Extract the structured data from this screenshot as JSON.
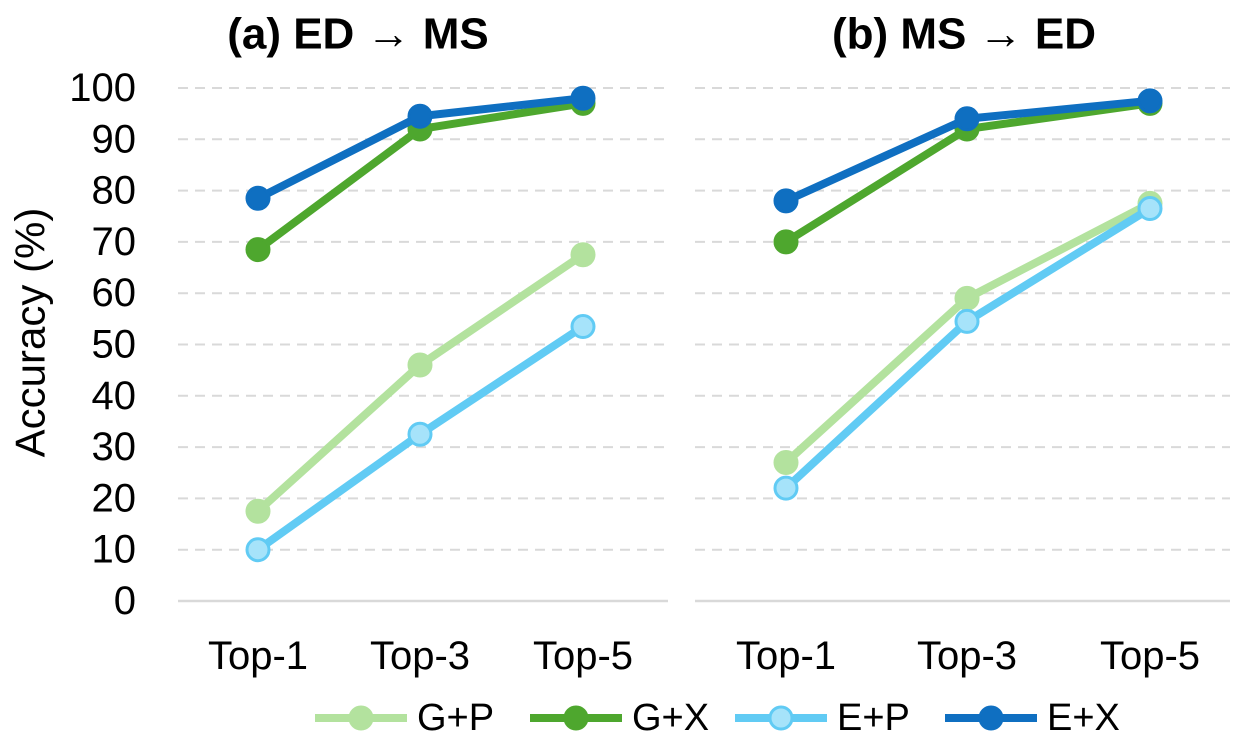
{
  "chart_data": [
    {
      "type": "line",
      "title": "(a) ED → MS",
      "ylabel": "Accuracy (%)",
      "xlabel": "",
      "categories": [
        "Top-1",
        "Top-3",
        "Top-5"
      ],
      "ylim": [
        0,
        100
      ],
      "yticks": [
        0,
        10,
        20,
        30,
        40,
        50,
        60,
        70,
        80,
        90,
        100
      ],
      "grid": true,
      "series": [
        {
          "name": "G+P",
          "values": [
            17.5,
            46,
            67.5
          ]
        },
        {
          "name": "G+X",
          "values": [
            68.5,
            92,
            97
          ]
        },
        {
          "name": "E+P",
          "values": [
            10,
            32.5,
            53.5
          ]
        },
        {
          "name": "E+X",
          "values": [
            78.5,
            94.5,
            98
          ]
        }
      ]
    },
    {
      "type": "line",
      "title": "(b) MS → ED",
      "ylabel": "",
      "xlabel": "",
      "categories": [
        "Top-1",
        "Top-3",
        "Top-5"
      ],
      "ylim": [
        0,
        100
      ],
      "yticks": [],
      "grid": true,
      "series": [
        {
          "name": "G+P",
          "values": [
            27,
            59,
            77.5
          ]
        },
        {
          "name": "G+X",
          "values": [
            70,
            92,
            97
          ]
        },
        {
          "name": "E+P",
          "values": [
            22,
            54.5,
            76.5
          ]
        },
        {
          "name": "E+X",
          "values": [
            78,
            94,
            97.5
          ]
        }
      ]
    }
  ],
  "legend": {
    "position": "bottom",
    "items": [
      "G+P",
      "G+X",
      "E+P",
      "E+X"
    ]
  },
  "colors": {
    "G+P": {
      "line": "#b3e29e",
      "marker": "#b3e29e",
      "stroke": "#b3e29e"
    },
    "G+X": {
      "line": "#4ea72e",
      "marker": "#4ea72e",
      "stroke": "#4ea72e"
    },
    "E+P": {
      "line": "#61cbf4",
      "marker": "#a6e3fa",
      "stroke": "#61cbf4"
    },
    "E+X": {
      "line": "#0f6fc1",
      "marker": "#0f6fc1",
      "stroke": "#0f6fc1"
    },
    "grid": "#d9d9d9"
  }
}
